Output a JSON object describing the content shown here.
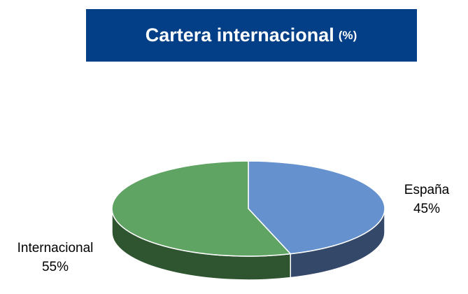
{
  "chart_data": {
    "type": "pie",
    "title": "Cartera internacional",
    "title_unit": "(%)",
    "categories": [
      "España",
      "Internacional"
    ],
    "values": [
      45,
      55
    ],
    "value_labels": [
      "45%",
      "55%"
    ],
    "colors": [
      "#6592cf",
      "#5fa463"
    ],
    "side_colors": [
      "#34486a",
      "#2f5530"
    ],
    "title_box_color": "#023f86"
  }
}
